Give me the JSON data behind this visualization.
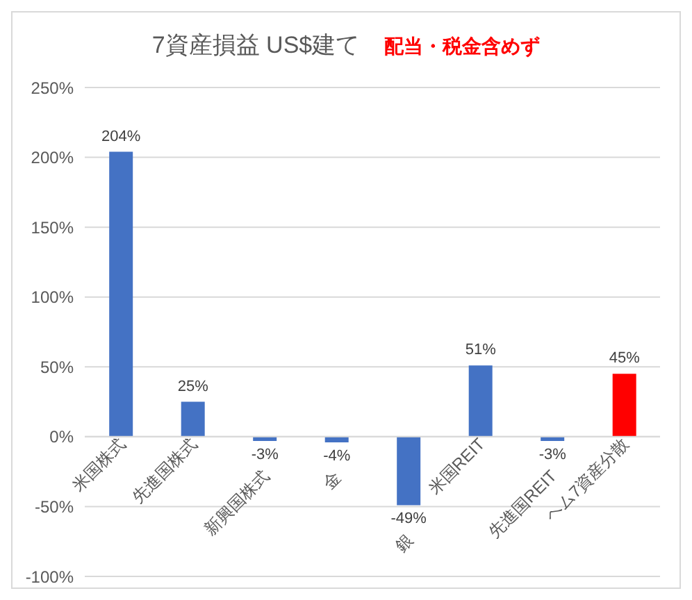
{
  "chart_data": {
    "type": "bar",
    "title": "7資産損益 US$建て",
    "subtitle": "配当・税金含めず",
    "categories": [
      "米国株式",
      "先進国株式",
      "新興国株式",
      "金",
      "銀",
      "米国REIT",
      "先進国REIT",
      "ヘム7資産分散"
    ],
    "values": [
      204,
      25,
      -3,
      -4,
      -49,
      51,
      -3,
      45
    ],
    "colors": [
      "#4472c4",
      "#4472c4",
      "#4472c4",
      "#4472c4",
      "#4472c4",
      "#4472c4",
      "#4472c4",
      "#ff0000"
    ],
    "value_labels": [
      "204%",
      "25%",
      "-3%",
      "-4%",
      "-49%",
      "51%",
      "-3%",
      "45%"
    ],
    "ylim": [
      -100,
      250
    ],
    "yticks": [
      {
        "value": -100,
        "label": "-100%"
      },
      {
        "value": -50,
        "label": "-50%"
      },
      {
        "value": 0,
        "label": "0%"
      },
      {
        "value": 50,
        "label": "50%"
      },
      {
        "value": 100,
        "label": "100%"
      },
      {
        "value": 150,
        "label": "150%"
      },
      {
        "value": 200,
        "label": "200%"
      },
      {
        "value": 250,
        "label": "250%"
      }
    ],
    "grid": "y",
    "legend": false
  }
}
